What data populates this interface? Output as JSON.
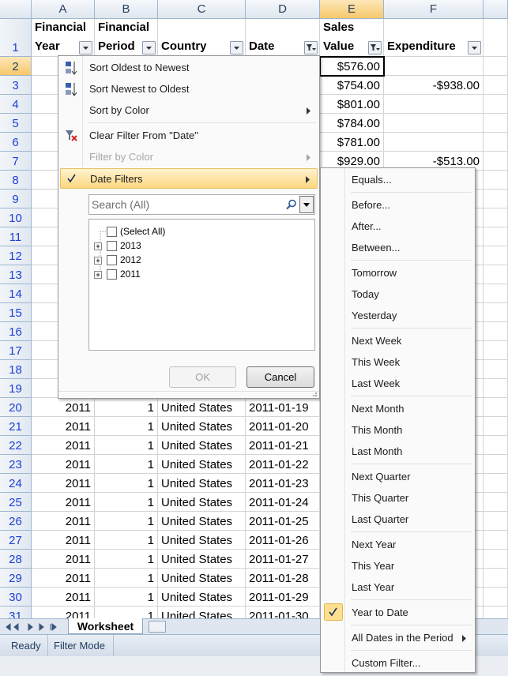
{
  "column_headers": [
    "A",
    "B",
    "C",
    "D",
    "E",
    "F"
  ],
  "rows": [
    {
      "number": 1,
      "cells": [
        "Financial Year",
        "Financial Period",
        "Country",
        "Date",
        "Sales Value",
        "Expenditure"
      ]
    },
    {
      "number": 2,
      "cells": [
        null,
        null,
        null,
        null,
        "$576.00",
        null
      ]
    },
    {
      "number": 3,
      "cells": [
        null,
        null,
        null,
        null,
        "$754.00",
        "-$938.00"
      ]
    },
    {
      "number": 4,
      "cells": [
        null,
        null,
        null,
        null,
        "$801.00",
        null
      ]
    },
    {
      "number": 5,
      "cells": [
        null,
        null,
        null,
        null,
        "$784.00",
        null
      ]
    },
    {
      "number": 6,
      "cells": [
        null,
        null,
        null,
        null,
        "$781.00",
        null
      ]
    },
    {
      "number": 7,
      "cells": [
        null,
        null,
        null,
        null,
        "$929.00",
        "-$513.00"
      ]
    },
    {
      "number": 8,
      "cells": null
    },
    {
      "number": 9,
      "cells": null
    },
    {
      "number": 10,
      "cells": null
    },
    {
      "number": 11,
      "cells": null
    },
    {
      "number": 12,
      "cells": null
    },
    {
      "number": 13,
      "cells": null
    },
    {
      "number": 14,
      "cells": null
    },
    {
      "number": 15,
      "cells": null
    },
    {
      "number": 16,
      "cells": null
    },
    {
      "number": 17,
      "cells": null
    },
    {
      "number": 18,
      "cells": null
    },
    {
      "number": 19,
      "cells": null
    },
    {
      "number": 20,
      "cells": [
        2011,
        1,
        "United States",
        "2011-01-19",
        null,
        null
      ]
    },
    {
      "number": 21,
      "cells": [
        2011,
        1,
        "United States",
        "2011-01-20",
        null,
        null
      ]
    },
    {
      "number": 22,
      "cells": [
        2011,
        1,
        "United States",
        "2011-01-21",
        null,
        null
      ]
    },
    {
      "number": 23,
      "cells": [
        2011,
        1,
        "United States",
        "2011-01-22",
        null,
        null
      ]
    },
    {
      "number": 24,
      "cells": [
        2011,
        1,
        "United States",
        "2011-01-23",
        null,
        null
      ]
    },
    {
      "number": 25,
      "cells": [
        2011,
        1,
        "United States",
        "2011-01-24",
        null,
        null
      ]
    },
    {
      "number": 26,
      "cells": [
        2011,
        1,
        "United States",
        "2011-01-25",
        null,
        null
      ]
    },
    {
      "number": 27,
      "cells": [
        2011,
        1,
        "United States",
        "2011-01-26",
        null,
        null
      ]
    },
    {
      "number": 28,
      "cells": [
        2011,
        1,
        "United States",
        "2011-01-27",
        null,
        null
      ]
    },
    {
      "number": 29,
      "cells": [
        2011,
        1,
        "United States",
        "2011-01-28",
        null,
        null
      ]
    },
    {
      "number": 30,
      "cells": [
        2011,
        1,
        "United States",
        "2011-01-29",
        null,
        null
      ]
    },
    {
      "number": 31,
      "cells": [
        2011,
        1,
        "United States",
        "2011-01-30",
        null,
        null
      ]
    }
  ],
  "sheet_tab": "Worksheet",
  "status_bar": [
    "Ready",
    "Filter Mode"
  ],
  "filter_menu": {
    "groups": [
      [
        {
          "label": "Sort Oldest to Newest"
        },
        {
          "label": "Sort Newest to Oldest"
        },
        {
          "label": "Sort by Color",
          "submenu": true
        }
      ],
      [
        {
          "label": "Clear Filter From \"Date\""
        },
        {
          "label": "Filter by Color",
          "disabled": true,
          "submenu": true
        },
        {
          "label": "Date Filters",
          "checked": true,
          "highlighted": true,
          "submenu": true
        }
      ]
    ],
    "search_placeholder": "Search (All)",
    "tree": [
      "(Select All)",
      "2013",
      "2012",
      "2011"
    ],
    "buttons": [
      {
        "label": "OK",
        "disabled": true
      },
      {
        "label": "Cancel"
      }
    ]
  },
  "date_filters_menu": {
    "groups": [
      [
        {
          "label": "Equals..."
        }
      ],
      [
        {
          "label": "Before..."
        },
        {
          "label": "After..."
        },
        {
          "label": "Between..."
        }
      ],
      [
        {
          "label": "Tomorrow"
        },
        {
          "label": "Today"
        },
        {
          "label": "Yesterday"
        }
      ],
      [
        {
          "label": "Next Week"
        },
        {
          "label": "This Week"
        },
        {
          "label": "Last Week"
        }
      ],
      [
        {
          "label": "Next Month"
        },
        {
          "label": "This Month"
        },
        {
          "label": "Last Month"
        }
      ],
      [
        {
          "label": "Next Quarter"
        },
        {
          "label": "This Quarter"
        },
        {
          "label": "Last Quarter"
        }
      ],
      [
        {
          "label": "Next Year"
        },
        {
          "label": "This Year"
        },
        {
          "label": "Last Year"
        }
      ],
      [
        {
          "label": "Year to Date",
          "checked": true
        }
      ],
      [
        {
          "label": "All Dates in the Period",
          "submenu": true
        }
      ],
      [
        {
          "label": "Custom Filter..."
        }
      ]
    ]
  }
}
